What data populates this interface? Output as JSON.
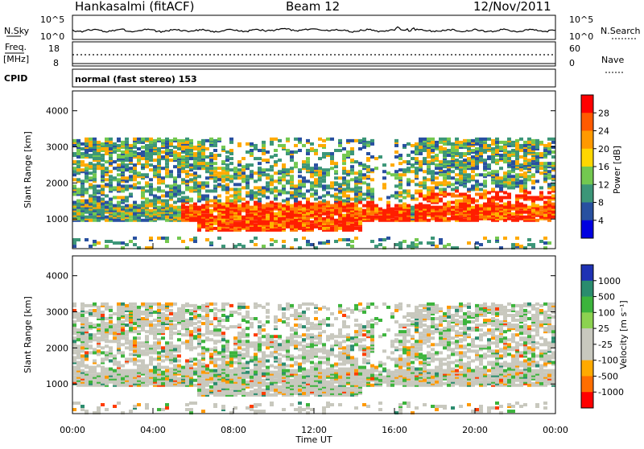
{
  "header": {
    "station": "Hankasalmi (fitACF)",
    "beam": "Beam 12",
    "date": "12/Nov/2011"
  },
  "noise_panel": {
    "left_label": "N.Sky",
    "right_label": "N.Search",
    "left_ticks": [
      "10^5",
      "10^0"
    ],
    "right_ticks": [
      "10^5",
      "10^0"
    ]
  },
  "freq_panel": {
    "left_label_1": "Freq.",
    "left_label_2": "[MHz]",
    "left_ticks": [
      "18",
      "8"
    ],
    "right_ticks": [
      "60",
      "0"
    ],
    "right_label": "Nave"
  },
  "cpid": {
    "label": "CPID",
    "text": "normal (fast stereo) 153"
  },
  "x_axis": {
    "label": "Time UT",
    "ticks": [
      "00:00",
      "04:00",
      "08:00",
      "12:00",
      "16:00",
      "20:00",
      "00:00"
    ]
  },
  "chart_data": [
    {
      "type": "heatmap",
      "title": "",
      "xlabel": "Time UT",
      "ylabel": "Slant Range [km]",
      "ylim": [
        180,
        4550
      ],
      "yticks": [
        "4000",
        "3000",
        "2000",
        "1000"
      ],
      "colorbar": {
        "label": "Power [dB]",
        "tick_labels": [
          "28",
          "24",
          "20",
          "16",
          "12",
          "8",
          "4"
        ],
        "colors": [
          "#ff0000",
          "#ff5a00",
          "#ff9900",
          "#ffd700",
          "#73c850",
          "#3c9678",
          "#2850a0",
          "#0000e0"
        ]
      }
    },
    {
      "type": "heatmap",
      "title": "",
      "xlabel": "Time UT",
      "ylabel": "Slant Range [km]",
      "ylim": [
        180,
        4550
      ],
      "yticks": [
        "4000",
        "3000",
        "2000",
        "1000"
      ],
      "colorbar": {
        "label": "Velocity [m s⁻¹]",
        "tick_labels": [
          "1000",
          "500",
          "100",
          "25",
          "-25",
          "-100",
          "-500",
          "-1000"
        ],
        "colors": [
          "#1e32b4",
          "#2a8c6e",
          "#3cb43c",
          "#8cd250",
          "#c8c8be",
          "#c8c8be",
          "#ffaa00",
          "#ff6e00",
          "#ff0000"
        ]
      }
    }
  ]
}
